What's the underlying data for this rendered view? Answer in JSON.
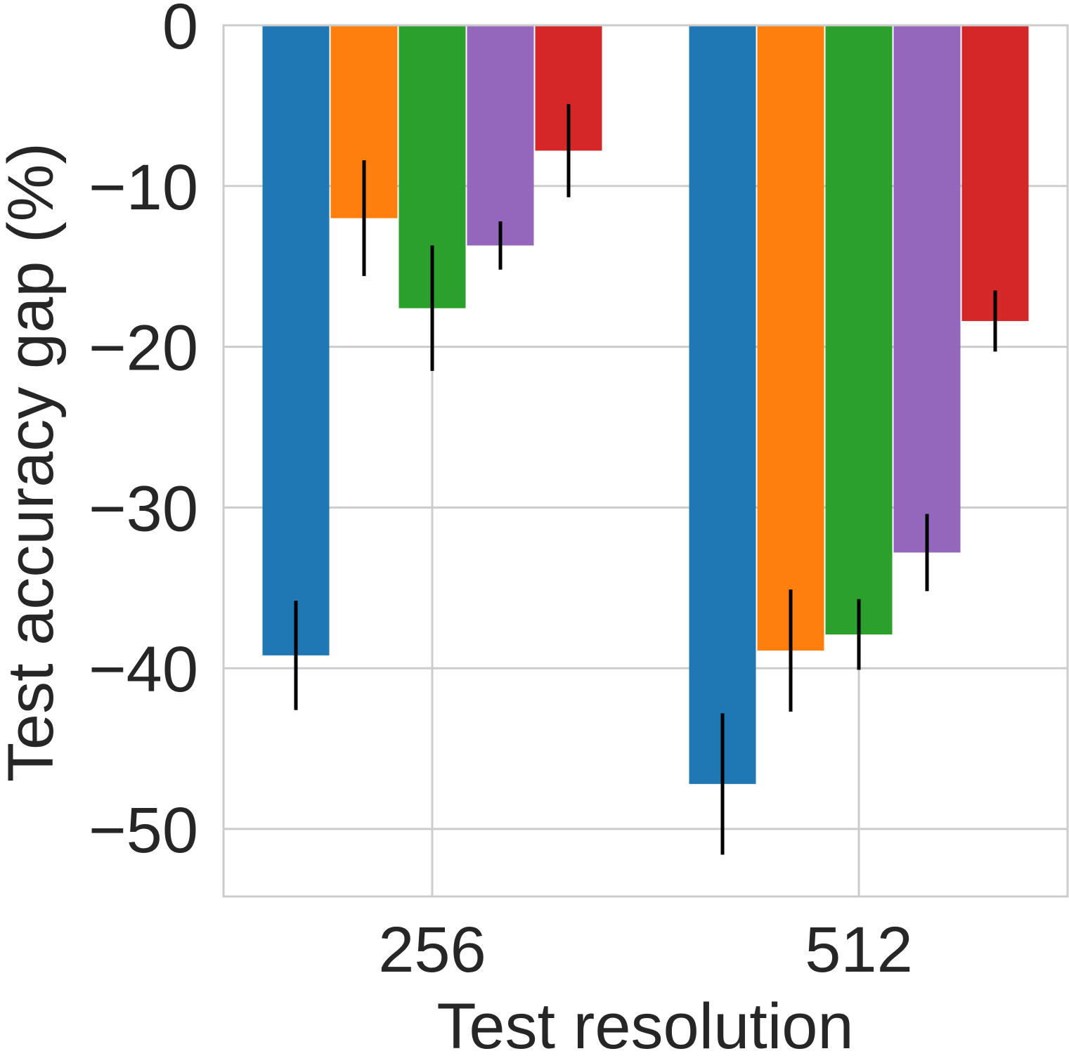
{
  "chart_data": {
    "type": "bar",
    "title": "",
    "xlabel": "Test resolution",
    "ylabel": "Test accuracy gap (%)",
    "categories": [
      "256",
      "512"
    ],
    "ylim": [
      -54.2,
      0
    ],
    "yticks": [
      0,
      -10,
      -20,
      -30,
      -40,
      -50
    ],
    "ytick_labels": [
      "0",
      "−10",
      "−20",
      "−30",
      "−40",
      "−50"
    ],
    "grid": true,
    "legend": "none",
    "series": [
      {
        "color": "#1f77b4",
        "values": [
          -39.2,
          -47.2
        ],
        "errors": [
          3.4,
          4.4
        ]
      },
      {
        "color": "#ff7f0e",
        "values": [
          -12.0,
          -38.9
        ],
        "errors": [
          3.6,
          3.8
        ]
      },
      {
        "color": "#2ca02c",
        "values": [
          -17.6,
          -37.9
        ],
        "errors": [
          3.9,
          2.2
        ]
      },
      {
        "color": "#9467bd",
        "values": [
          -13.7,
          -32.8
        ],
        "errors": [
          1.5,
          2.4
        ]
      },
      {
        "color": "#d62728",
        "values": [
          -7.8,
          -18.4
        ],
        "errors": [
          2.9,
          1.9
        ]
      }
    ]
  }
}
